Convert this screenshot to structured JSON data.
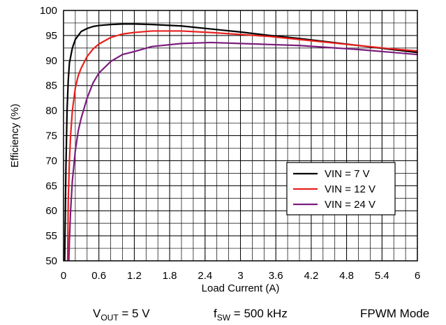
{
  "chart_data": {
    "type": "line",
    "title": "",
    "xlabel": "Load Current (A)",
    "ylabel": "Efficiency (%)",
    "xlim": [
      0,
      6
    ],
    "ylim": [
      50,
      100
    ],
    "xticks": [
      0,
      0.6,
      1.2,
      1.8,
      2.4,
      3,
      3.6,
      4.2,
      4.8,
      5.4,
      6
    ],
    "xtick_labels": [
      "0",
      "0.6",
      "1.2",
      "1.8",
      "2.4",
      "3",
      "3.6",
      "4.2",
      "4.8",
      "5.4",
      "6"
    ],
    "yticks": [
      50,
      55,
      60,
      65,
      70,
      75,
      80,
      85,
      90,
      95,
      100
    ],
    "ytick_labels": [
      "50",
      "55",
      "60",
      "65",
      "70",
      "75",
      "80",
      "85",
      "90",
      "95",
      "100"
    ],
    "minor_xgrid_step": 0.2,
    "minor_ygrid_step": 2.5,
    "grid": true,
    "legend_position": "center-right",
    "series": [
      {
        "name": "VIN = 7 V",
        "color": "#000000",
        "x": [
          0.02,
          0.04,
          0.06,
          0.08,
          0.1,
          0.15,
          0.2,
          0.3,
          0.4,
          0.5,
          0.6,
          0.8,
          1.0,
          1.2,
          1.5,
          2.0,
          2.5,
          3.0,
          3.5,
          4.0,
          4.5,
          5.0,
          5.5,
          6.0
        ],
        "y": [
          50,
          68,
          80,
          86,
          89.5,
          92.5,
          94.2,
          95.8,
          96.4,
          96.8,
          97.0,
          97.2,
          97.3,
          97.3,
          97.2,
          96.9,
          96.3,
          95.7,
          95.0,
          94.4,
          93.7,
          93.0,
          92.3,
          91.6
        ]
      },
      {
        "name": "VIN = 12 V",
        "color": "#e8201c",
        "x": [
          0.07,
          0.08,
          0.1,
          0.12,
          0.15,
          0.2,
          0.25,
          0.3,
          0.4,
          0.5,
          0.6,
          0.8,
          1.0,
          1.2,
          1.5,
          2.0,
          2.5,
          3.0,
          3.5,
          4.0,
          4.5,
          5.0,
          5.5,
          6.0
        ],
        "y": [
          50,
          62,
          70,
          75,
          80,
          84.5,
          87,
          88.5,
          90.8,
          92.3,
          93.3,
          94.6,
          95.3,
          95.6,
          95.9,
          95.9,
          95.6,
          95.2,
          94.8,
          94.2,
          93.6,
          93.0,
          92.4,
          91.9
        ]
      },
      {
        "name": "VIN = 24 V",
        "color": "#7b1c7d",
        "x": [
          0.09,
          0.1,
          0.12,
          0.15,
          0.2,
          0.25,
          0.3,
          0.4,
          0.5,
          0.6,
          0.8,
          1.0,
          1.2,
          1.5,
          2.0,
          2.5,
          3.0,
          3.5,
          4.0,
          4.5,
          5.0,
          5.5,
          6.0
        ],
        "y": [
          50,
          54,
          60,
          66,
          72,
          76,
          78.5,
          82.5,
          85.5,
          87.5,
          89.8,
          91.2,
          91.8,
          92.8,
          93.4,
          93.6,
          93.4,
          93.2,
          93.0,
          92.6,
          92.2,
          91.7,
          91.2
        ]
      }
    ]
  },
  "conditions": {
    "vout_symbol": "V",
    "vout_sub": "OUT",
    "vout_value": " = 5 V",
    "fsw_symbol": "f",
    "fsw_sub": "SW",
    "fsw_value": " = 500 kHz",
    "mode": "FPWM Mode"
  }
}
